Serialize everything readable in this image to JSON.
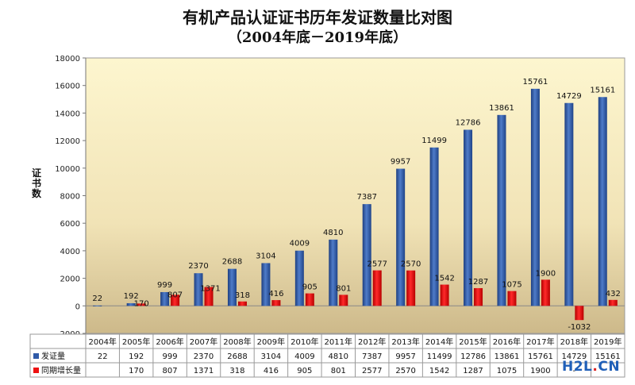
{
  "chart_data": {
    "type": "bar",
    "title": "有机产品认证证书历年发证数量比对图",
    "subtitle": "（2004年底－2019年底）",
    "ylabel": "证书数",
    "ylim": [
      -2000,
      18000
    ],
    "yticks": [
      -2000,
      0,
      2000,
      4000,
      6000,
      8000,
      10000,
      12000,
      14000,
      16000,
      18000
    ],
    "categories": [
      "2004年",
      "2005年",
      "2006年",
      "2007年",
      "2008年",
      "2009年",
      "2010年",
      "2011年",
      "2012年",
      "2013年",
      "2014年",
      "2015年",
      "2016年",
      "2017年",
      "2018年",
      "2019年"
    ],
    "series": [
      {
        "name": "发证量",
        "color": "#2f5aa8",
        "values": [
          22,
          192,
          999,
          2370,
          2688,
          3104,
          4009,
          4810,
          7387,
          9957,
          11499,
          12786,
          13861,
          15761,
          14729,
          15161
        ]
      },
      {
        "name": "同期增长量",
        "color": "#ee1111",
        "values": [
          null,
          170,
          807,
          1371,
          318,
          416,
          905,
          801,
          2577,
          2570,
          1542,
          1287,
          1075,
          1900,
          -1032,
          432
        ]
      }
    ],
    "table_values": [
      [
        "22",
        "192",
        "999",
        "2370",
        "2688",
        "3104",
        "4009",
        "4810",
        "7387",
        "9957",
        "11499",
        "12786",
        "13861",
        "15761",
        "14729",
        "15161"
      ],
      [
        "",
        "170",
        "807",
        "1371",
        "318",
        "416",
        "905",
        "801",
        "2577",
        "2570",
        "1542",
        "1287",
        "1075",
        "1900",
        "-",
        ""
      ]
    ],
    "grid": false,
    "legend": "data-table"
  },
  "watermark": {
    "text": "H2L",
    "dot": ".",
    "suffix": "CN"
  }
}
